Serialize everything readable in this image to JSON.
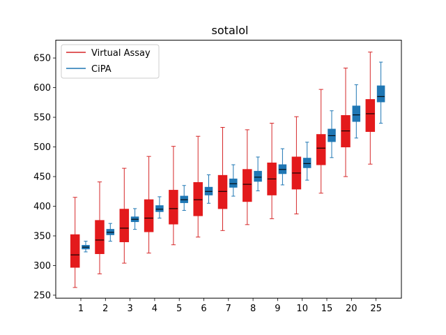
{
  "chart_data": {
    "type": "boxplot",
    "title": "sotalol",
    "xlabel": "",
    "ylabel": "",
    "categories": [
      "1",
      "2",
      "3",
      "4",
      "5",
      "6",
      "7",
      "8",
      "9",
      "10",
      "15",
      "20",
      "25"
    ],
    "ylim": [
      245,
      680
    ],
    "yticks": [
      250,
      300,
      350,
      400,
      450,
      500,
      550,
      600,
      650
    ],
    "grid": false,
    "legend_position": "top-left",
    "series": [
      {
        "name": "Virtual Assay",
        "color": "#d62728",
        "box_color": "#e31a1c",
        "boxes": [
          {
            "min": 263,
            "q1": 297,
            "median": 318,
            "q3": 352,
            "max": 415
          },
          {
            "min": 286,
            "q1": 320,
            "median": 343,
            "q3": 376,
            "max": 441
          },
          {
            "min": 304,
            "q1": 340,
            "median": 363,
            "q3": 395,
            "max": 464
          },
          {
            "min": 321,
            "q1": 357,
            "median": 380,
            "q3": 411,
            "max": 484
          },
          {
            "min": 335,
            "q1": 370,
            "median": 396,
            "q3": 427,
            "max": 501
          },
          {
            "min": 348,
            "q1": 384,
            "median": 411,
            "q3": 440,
            "max": 518
          },
          {
            "min": 359,
            "q1": 396,
            "median": 425,
            "q3": 452,
            "max": 533
          },
          {
            "min": 369,
            "q1": 408,
            "median": 437,
            "q3": 462,
            "max": 529
          },
          {
            "min": 379,
            "q1": 419,
            "median": 446,
            "q3": 473,
            "max": 540
          },
          {
            "min": 387,
            "q1": 429,
            "median": 456,
            "q3": 483,
            "max": 551
          },
          {
            "min": 422,
            "q1": 470,
            "median": 498,
            "q3": 521,
            "max": 597
          },
          {
            "min": 450,
            "q1": 500,
            "median": 527,
            "q3": 553,
            "max": 633
          },
          {
            "min": 471,
            "q1": 526,
            "median": 556,
            "q3": 580,
            "max": 660
          }
        ]
      },
      {
        "name": "CiPA",
        "color": "#1f77b4",
        "box_color": "#1f77b4",
        "boxes": [
          {
            "min": 323,
            "q1": 328,
            "median": 331,
            "q3": 334,
            "max": 341
          },
          {
            "min": 341,
            "q1": 352,
            "median": 356,
            "q3": 361,
            "max": 371
          },
          {
            "min": 361,
            "q1": 374,
            "median": 378,
            "q3": 382,
            "max": 396
          },
          {
            "min": 380,
            "q1": 391,
            "median": 395,
            "q3": 401,
            "max": 416
          },
          {
            "min": 393,
            "q1": 406,
            "median": 411,
            "q3": 417,
            "max": 435
          },
          {
            "min": 405,
            "q1": 419,
            "median": 425,
            "q3": 432,
            "max": 453
          },
          {
            "min": 417,
            "q1": 432,
            "median": 438,
            "q3": 446,
            "max": 470
          },
          {
            "min": 426,
            "q1": 442,
            "median": 449,
            "q3": 459,
            "max": 483
          },
          {
            "min": 436,
            "q1": 455,
            "median": 462,
            "q3": 470,
            "max": 497
          },
          {
            "min": 444,
            "q1": 465,
            "median": 472,
            "q3": 481,
            "max": 508
          },
          {
            "min": 482,
            "q1": 509,
            "median": 519,
            "q3": 530,
            "max": 561
          },
          {
            "min": 515,
            "q1": 543,
            "median": 554,
            "q3": 569,
            "max": 605
          },
          {
            "min": 540,
            "q1": 576,
            "median": 585,
            "q3": 603,
            "max": 643
          }
        ]
      }
    ]
  }
}
